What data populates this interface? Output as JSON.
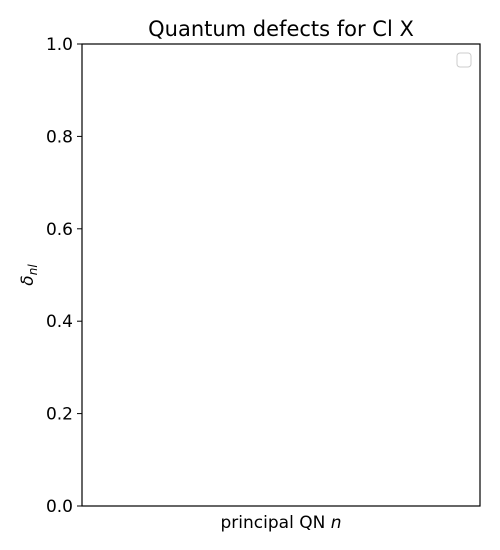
{
  "chart_data": {
    "type": "line",
    "title": "Quantum defects for Cl X",
    "xlabel": {
      "text": "principal QN ",
      "italic": "n"
    },
    "ylabel": {
      "symbol": "δ",
      "subscript": "nl"
    },
    "ylim": [
      0.0,
      1.0
    ],
    "yticks": [
      "0.0",
      "0.2",
      "0.4",
      "0.6",
      "0.8",
      "1.0"
    ],
    "xticks": [],
    "series": [],
    "grid": false,
    "legend": {
      "placement": "upper-right",
      "entries": []
    }
  }
}
